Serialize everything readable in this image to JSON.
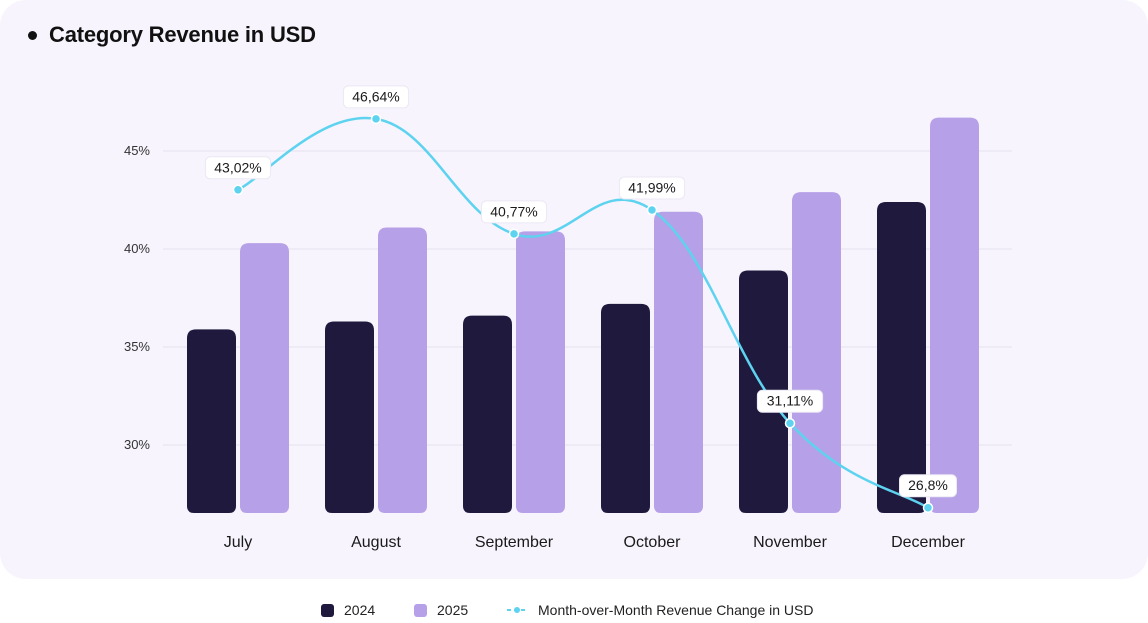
{
  "chart_data": {
    "type": "bar",
    "title": "Category Revenue in USD",
    "categories": [
      "July",
      "August",
      "September",
      "October",
      "November",
      "December"
    ],
    "series": [
      {
        "name": "2024",
        "type": "bar",
        "color": "#1f1a3d",
        "values": [
          35.9,
          36.3,
          36.6,
          37.2,
          38.9,
          42.4
        ]
      },
      {
        "name": "2025",
        "type": "bar",
        "color": "#b6a0e8",
        "values": [
          40.3,
          41.1,
          40.9,
          41.9,
          42.9,
          46.7
        ]
      },
      {
        "name": "Month-over-Month Revenue Change in USD",
        "type": "line",
        "color": "#5dd3f0",
        "values": [
          43.02,
          46.64,
          40.77,
          41.99,
          31.11,
          26.8
        ],
        "labels": [
          "43,02%",
          "46,64%",
          "40,77%",
          "41,99%",
          "31,11%",
          "26,8%"
        ]
      }
    ],
    "yticks": [
      30,
      35,
      40,
      45
    ],
    "ytick_labels": [
      "30%",
      "35%",
      "40%",
      "45%"
    ],
    "ylim": [
      26.6,
      48.6
    ],
    "grid": true,
    "legend_position": "bottom-center"
  }
}
